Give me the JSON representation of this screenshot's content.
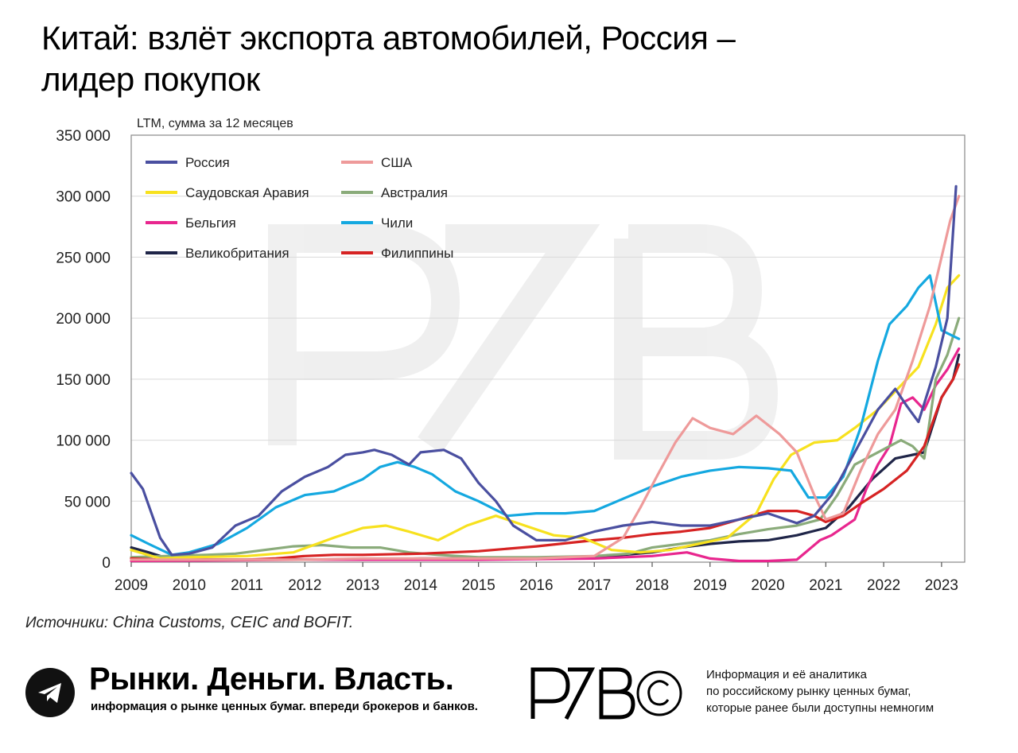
{
  "title_lines": [
    "Китай: взлёт экспорта автомобилей, Россия –",
    "лидер покупок"
  ],
  "source": {
    "label": "Источники:",
    "text": "China Customs, CEIC and BOFIT."
  },
  "footer": {
    "brand_name": "Рынки. Деньги. Власть.",
    "brand_tagline": "информация о рынке ценных бумаг. впереди брокеров и банков.",
    "logo_text": "PZB©",
    "info_lines": [
      "Информация и её аналитика",
      "по российскому рынку ценных бумаг,",
      "которые ранее были доступны немногим"
    ]
  },
  "chart_data": {
    "type": "line",
    "subtitle": "LTM, сумма за 12 месяцев",
    "x_ticks": [
      "2009",
      "2010",
      "2011",
      "2012",
      "2013",
      "2014",
      "2015",
      "2016",
      "2017",
      "2018",
      "2019",
      "2020",
      "2021",
      "2022",
      "2023"
    ],
    "y_ticks": [
      "0",
      "50 000",
      "100 000",
      "150 000",
      "200 000",
      "250 000",
      "300 000",
      "350 000"
    ],
    "xlim": [
      2009,
      2023.4
    ],
    "ylim": [
      0,
      350000
    ],
    "grid": "horizontal",
    "legend_position": "top-left",
    "series": [
      {
        "name": "Россия",
        "color": "#4a4fa0",
        "points": [
          [
            2009,
            73000
          ],
          [
            2009.2,
            60000
          ],
          [
            2009.5,
            20000
          ],
          [
            2009.7,
            6000
          ],
          [
            2010,
            7000
          ],
          [
            2010.4,
            12000
          ],
          [
            2010.8,
            30000
          ],
          [
            2011.2,
            38000
          ],
          [
            2011.6,
            58000
          ],
          [
            2012,
            70000
          ],
          [
            2012.4,
            78000
          ],
          [
            2012.7,
            88000
          ],
          [
            2013,
            90000
          ],
          [
            2013.2,
            92000
          ],
          [
            2013.5,
            88000
          ],
          [
            2013.8,
            80000
          ],
          [
            2014,
            90000
          ],
          [
            2014.4,
            92000
          ],
          [
            2014.7,
            85000
          ],
          [
            2015,
            65000
          ],
          [
            2015.3,
            50000
          ],
          [
            2015.6,
            30000
          ],
          [
            2016,
            18000
          ],
          [
            2016.5,
            18000
          ],
          [
            2017,
            25000
          ],
          [
            2017.5,
            30000
          ],
          [
            2018,
            33000
          ],
          [
            2018.5,
            30000
          ],
          [
            2019,
            30000
          ],
          [
            2019.5,
            35000
          ],
          [
            2020,
            40000
          ],
          [
            2020.5,
            32000
          ],
          [
            2020.8,
            38000
          ],
          [
            2021.1,
            55000
          ],
          [
            2021.5,
            90000
          ],
          [
            2021.9,
            125000
          ],
          [
            2022.2,
            142000
          ],
          [
            2022.4,
            128000
          ],
          [
            2022.6,
            115000
          ],
          [
            2022.9,
            160000
          ],
          [
            2023.1,
            200000
          ],
          [
            2023.25,
            308000
          ]
        ]
      },
      {
        "name": "США",
        "color": "#ee9a9a",
        "points": [
          [
            2009,
            2000
          ],
          [
            2010,
            2000
          ],
          [
            2011,
            2000
          ],
          [
            2012,
            2000
          ],
          [
            2013,
            3000
          ],
          [
            2014,
            3000
          ],
          [
            2015,
            3000
          ],
          [
            2016,
            3000
          ],
          [
            2017,
            5000
          ],
          [
            2017.5,
            20000
          ],
          [
            2017.8,
            45000
          ],
          [
            2018.1,
            72000
          ],
          [
            2018.4,
            98000
          ],
          [
            2018.7,
            118000
          ],
          [
            2019,
            110000
          ],
          [
            2019.4,
            105000
          ],
          [
            2019.8,
            120000
          ],
          [
            2020.2,
            105000
          ],
          [
            2020.5,
            90000
          ],
          [
            2020.8,
            55000
          ],
          [
            2021,
            35000
          ],
          [
            2021.3,
            40000
          ],
          [
            2021.6,
            75000
          ],
          [
            2021.9,
            105000
          ],
          [
            2022.2,
            125000
          ],
          [
            2022.5,
            165000
          ],
          [
            2022.8,
            210000
          ],
          [
            2023,
            250000
          ],
          [
            2023.15,
            280000
          ],
          [
            2023.3,
            300000
          ]
        ]
      },
      {
        "name": "Саудовская Аравия",
        "color": "#f7e11e",
        "points": [
          [
            2009,
            10000
          ],
          [
            2009.5,
            3000
          ],
          [
            2010,
            4000
          ],
          [
            2011,
            5000
          ],
          [
            2011.8,
            8000
          ],
          [
            2012.5,
            20000
          ],
          [
            2013,
            28000
          ],
          [
            2013.4,
            30000
          ],
          [
            2013.8,
            25000
          ],
          [
            2014.3,
            18000
          ],
          [
            2014.8,
            30000
          ],
          [
            2015.3,
            38000
          ],
          [
            2015.8,
            30000
          ],
          [
            2016.3,
            22000
          ],
          [
            2016.8,
            20000
          ],
          [
            2017.3,
            10000
          ],
          [
            2017.8,
            8000
          ],
          [
            2018.3,
            10000
          ],
          [
            2018.8,
            15000
          ],
          [
            2019.3,
            20000
          ],
          [
            2019.8,
            40000
          ],
          [
            2020.1,
            68000
          ],
          [
            2020.4,
            88000
          ],
          [
            2020.8,
            98000
          ],
          [
            2021.2,
            100000
          ],
          [
            2021.5,
            110000
          ],
          [
            2021.9,
            125000
          ],
          [
            2022.2,
            140000
          ],
          [
            2022.6,
            160000
          ],
          [
            2022.9,
            195000
          ],
          [
            2023.1,
            225000
          ],
          [
            2023.3,
            235000
          ]
        ]
      },
      {
        "name": "Австралия",
        "color": "#8aab7a",
        "points": [
          [
            2009,
            4000
          ],
          [
            2009.6,
            5000
          ],
          [
            2010.3,
            6000
          ],
          [
            2010.8,
            7000
          ],
          [
            2011.3,
            10000
          ],
          [
            2011.8,
            13000
          ],
          [
            2012.3,
            14000
          ],
          [
            2012.8,
            12000
          ],
          [
            2013.3,
            12000
          ],
          [
            2013.8,
            8000
          ],
          [
            2014.3,
            6000
          ],
          [
            2015,
            4000
          ],
          [
            2016,
            4000
          ],
          [
            2017,
            5000
          ],
          [
            2017.6,
            7000
          ],
          [
            2018,
            12000
          ],
          [
            2018.5,
            15000
          ],
          [
            2019,
            18000
          ],
          [
            2019.5,
            23000
          ],
          [
            2020,
            27000
          ],
          [
            2020.5,
            30000
          ],
          [
            2020.9,
            35000
          ],
          [
            2021.2,
            55000
          ],
          [
            2021.5,
            80000
          ],
          [
            2021.9,
            90000
          ],
          [
            2022.3,
            100000
          ],
          [
            2022.5,
            95000
          ],
          [
            2022.7,
            85000
          ],
          [
            2022.9,
            150000
          ],
          [
            2023.1,
            170000
          ],
          [
            2023.3,
            200000
          ]
        ]
      },
      {
        "name": "Бельгия",
        "color": "#e8268e",
        "points": [
          [
            2009,
            1000
          ],
          [
            2012,
            2000
          ],
          [
            2015,
            2000
          ],
          [
            2017,
            3000
          ],
          [
            2018,
            5000
          ],
          [
            2018.6,
            8000
          ],
          [
            2019,
            3000
          ],
          [
            2019.5,
            1000
          ],
          [
            2020,
            1000
          ],
          [
            2020.5,
            2000
          ],
          [
            2020.9,
            18000
          ],
          [
            2021.1,
            22000
          ],
          [
            2021.5,
            35000
          ],
          [
            2021.7,
            60000
          ],
          [
            2021.9,
            80000
          ],
          [
            2022.1,
            95000
          ],
          [
            2022.3,
            130000
          ],
          [
            2022.5,
            135000
          ],
          [
            2022.7,
            125000
          ],
          [
            2022.9,
            145000
          ],
          [
            2023.1,
            158000
          ],
          [
            2023.3,
            175000
          ]
        ]
      },
      {
        "name": "Чили",
        "color": "#14a8e0",
        "points": [
          [
            2009,
            22000
          ],
          [
            2009.3,
            15000
          ],
          [
            2009.7,
            6000
          ],
          [
            2010,
            8000
          ],
          [
            2010.5,
            15000
          ],
          [
            2011,
            28000
          ],
          [
            2011.5,
            45000
          ],
          [
            2012,
            55000
          ],
          [
            2012.5,
            58000
          ],
          [
            2013,
            68000
          ],
          [
            2013.3,
            78000
          ],
          [
            2013.6,
            82000
          ],
          [
            2013.9,
            78000
          ],
          [
            2014.2,
            72000
          ],
          [
            2014.6,
            58000
          ],
          [
            2015,
            50000
          ],
          [
            2015.5,
            38000
          ],
          [
            2016,
            40000
          ],
          [
            2016.5,
            40000
          ],
          [
            2017,
            42000
          ],
          [
            2017.5,
            52000
          ],
          [
            2018,
            62000
          ],
          [
            2018.5,
            70000
          ],
          [
            2019,
            75000
          ],
          [
            2019.5,
            78000
          ],
          [
            2020,
            77000
          ],
          [
            2020.4,
            75000
          ],
          [
            2020.7,
            53000
          ],
          [
            2021,
            53000
          ],
          [
            2021.3,
            70000
          ],
          [
            2021.6,
            110000
          ],
          [
            2021.9,
            165000
          ],
          [
            2022.1,
            195000
          ],
          [
            2022.4,
            210000
          ],
          [
            2022.6,
            225000
          ],
          [
            2022.8,
            235000
          ],
          [
            2023,
            190000
          ],
          [
            2023.3,
            183000
          ]
        ]
      },
      {
        "name": "Великобритания",
        "color": "#1f2548",
        "points": [
          [
            2009,
            12000
          ],
          [
            2009.3,
            8000
          ],
          [
            2009.7,
            2000
          ],
          [
            2010,
            2000
          ],
          [
            2011,
            2000
          ],
          [
            2012,
            2000
          ],
          [
            2013,
            2000
          ],
          [
            2014,
            3000
          ],
          [
            2015,
            3000
          ],
          [
            2016,
            3000
          ],
          [
            2017,
            4000
          ],
          [
            2018,
            8000
          ],
          [
            2018.5,
            12000
          ],
          [
            2019,
            15000
          ],
          [
            2019.5,
            17000
          ],
          [
            2020,
            18000
          ],
          [
            2020.5,
            22000
          ],
          [
            2021,
            28000
          ],
          [
            2021.4,
            45000
          ],
          [
            2021.8,
            68000
          ],
          [
            2022.2,
            85000
          ],
          [
            2022.5,
            88000
          ],
          [
            2022.7,
            90000
          ],
          [
            2023,
            135000
          ],
          [
            2023.2,
            150000
          ],
          [
            2023.3,
            170000
          ]
        ]
      },
      {
        "name": "Филиппины",
        "color": "#d62323",
        "points": [
          [
            2009,
            3000
          ],
          [
            2009.5,
            2000
          ],
          [
            2010,
            2000
          ],
          [
            2011,
            2000
          ],
          [
            2011.5,
            3000
          ],
          [
            2012,
            5000
          ],
          [
            2012.5,
            6000
          ],
          [
            2013,
            6000
          ],
          [
            2014,
            7000
          ],
          [
            2015,
            9000
          ],
          [
            2016,
            13000
          ],
          [
            2017,
            18000
          ],
          [
            2017.5,
            20000
          ],
          [
            2018,
            23000
          ],
          [
            2018.5,
            25000
          ],
          [
            2019,
            28000
          ],
          [
            2019.5,
            35000
          ],
          [
            2020,
            42000
          ],
          [
            2020.5,
            42000
          ],
          [
            2020.8,
            38000
          ],
          [
            2021,
            33000
          ],
          [
            2021.3,
            38000
          ],
          [
            2021.6,
            48000
          ],
          [
            2022,
            60000
          ],
          [
            2022.4,
            75000
          ],
          [
            2022.7,
            95000
          ],
          [
            2023,
            135000
          ],
          [
            2023.2,
            150000
          ],
          [
            2023.3,
            162000
          ]
        ]
      }
    ]
  }
}
